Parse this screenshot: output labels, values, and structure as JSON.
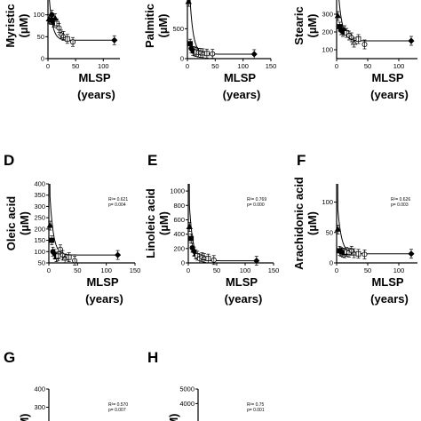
{
  "chart_data": [
    {
      "id": "A",
      "type": "scatter",
      "letter": "",
      "ylabel": [
        "Myristic",
        "(µM)"
      ],
      "xlabel": [
        "MLSP",
        "(years)"
      ],
      "xlim": [
        0,
        130
      ],
      "ylim": [
        0,
        150
      ],
      "xticks": [
        0,
        50,
        100
      ],
      "yticks": [
        0,
        50,
        100
      ],
      "points": [
        [
          2,
          90
        ],
        [
          5,
          88
        ],
        [
          7,
          100
        ],
        [
          10,
          82
        ],
        [
          13,
          92
        ],
        [
          16,
          80
        ],
        [
          20,
          70
        ],
        [
          24,
          55
        ],
        [
          28,
          52
        ],
        [
          35,
          45
        ],
        [
          45,
          38
        ],
        [
          120,
          42
        ]
      ],
      "stat": null
    },
    {
      "id": "B",
      "type": "scatter",
      "letter": "",
      "ylabel": [
        "Palmitic",
        "(µM)"
      ],
      "xlabel": [
        "MLSP",
        "(years)"
      ],
      "xlim": [
        0,
        150
      ],
      "ylim": [
        0,
        1100
      ],
      "xticks": [
        0,
        50,
        100,
        150
      ],
      "yticks": [
        0,
        500,
        1000
      ],
      "points": [
        [
          2,
          950
        ],
        [
          5,
          250
        ],
        [
          7,
          170
        ],
        [
          10,
          130
        ],
        [
          13,
          120
        ],
        [
          16,
          110
        ],
        [
          20,
          100
        ],
        [
          24,
          95
        ],
        [
          28,
          90
        ],
        [
          35,
          85
        ],
        [
          45,
          80
        ],
        [
          120,
          75
        ]
      ],
      "stat": null
    },
    {
      "id": "C",
      "type": "scatter",
      "letter": "",
      "ylabel": [
        "Stearic",
        "(µM)"
      ],
      "xlabel": [
        "MLSP",
        "(years)"
      ],
      "xlim": [
        0,
        130
      ],
      "ylim": [
        50,
        420
      ],
      "xticks": [
        0,
        50,
        100
      ],
      "yticks": [
        100,
        200,
        300,
        400
      ],
      "points": [
        [
          2,
          290
        ],
        [
          5,
          230
        ],
        [
          7,
          210
        ],
        [
          10,
          200
        ],
        [
          13,
          210
        ],
        [
          16,
          195
        ],
        [
          20,
          180
        ],
        [
          24,
          170
        ],
        [
          28,
          140
        ],
        [
          35,
          160
        ],
        [
          45,
          130
        ],
        [
          120,
          150
        ]
      ],
      "stat": null
    },
    {
      "id": "D",
      "type": "scatter",
      "letter": "D",
      "ylabel": [
        "Oleic acid",
        "(µM)"
      ],
      "xlabel": [
        "MLSP",
        "(years)"
      ],
      "xlim": [
        0,
        150
      ],
      "ylim": [
        50,
        400
      ],
      "xticks": [
        0,
        50,
        100,
        150
      ],
      "yticks": [
        50,
        100,
        150,
        200,
        250,
        300,
        350,
        400
      ],
      "points": [
        [
          2,
          215
        ],
        [
          5,
          150
        ],
        [
          7,
          100
        ],
        [
          10,
          90
        ],
        [
          13,
          75
        ],
        [
          16,
          80
        ],
        [
          20,
          110
        ],
        [
          24,
          85
        ],
        [
          28,
          70
        ],
        [
          35,
          75
        ],
        [
          45,
          60
        ],
        [
          120,
          85
        ]
      ],
      "stat": [
        "R²= 0.621",
        "p= 0.004"
      ]
    },
    {
      "id": "E",
      "type": "scatter",
      "letter": "E",
      "ylabel": [
        "Linoleic acid",
        "(µM)"
      ],
      "xlabel": [
        "MLSP",
        "(years)"
      ],
      "xlim": [
        0,
        150
      ],
      "ylim": [
        0,
        1100
      ],
      "xticks": [
        0,
        50,
        100,
        150
      ],
      "yticks": [
        0,
        200,
        400,
        600,
        800,
        1000
      ],
      "points": [
        [
          2,
          500
        ],
        [
          5,
          340
        ],
        [
          7,
          210
        ],
        [
          10,
          160
        ],
        [
          13,
          120
        ],
        [
          16,
          100
        ],
        [
          20,
          60
        ],
        [
          24,
          80
        ],
        [
          28,
          70
        ],
        [
          35,
          60
        ],
        [
          45,
          40
        ],
        [
          120,
          30
        ]
      ],
      "stat": [
        "R²= 0.769",
        "p= 0.000"
      ]
    },
    {
      "id": "F",
      "type": "scatter",
      "letter": "F",
      "ylabel": [
        "Arachidonic acid",
        "(µM)"
      ],
      "xlabel": [
        "MLSP",
        "(years)"
      ],
      "xlim": [
        0,
        130
      ],
      "ylim": [
        0,
        130
      ],
      "xticks": [
        0,
        50,
        100
      ],
      "yticks": [
        0,
        50,
        100
      ],
      "points": [
        [
          2,
          55
        ],
        [
          5,
          20
        ],
        [
          7,
          18
        ],
        [
          10,
          17
        ],
        [
          13,
          16
        ],
        [
          16,
          18
        ],
        [
          20,
          17
        ],
        [
          24,
          20
        ],
        [
          28,
          16
        ],
        [
          35,
          15
        ],
        [
          45,
          14
        ],
        [
          120,
          15
        ]
      ],
      "stat": [
        "R²= 0.626",
        "p= 0.003"
      ]
    },
    {
      "id": "G",
      "type": "scatter",
      "letter": "G",
      "ylabel": [
        "",
        "(µM)"
      ],
      "xlabel": [
        "",
        ""
      ],
      "xlim": [
        0,
        150
      ],
      "ylim": [
        0,
        400
      ],
      "xticks": [],
      "yticks": [
        300,
        400
      ],
      "points": [],
      "stat": [
        "R²= 0.570",
        "p= 0.007"
      ]
    },
    {
      "id": "H",
      "type": "scatter",
      "letter": "H",
      "ylabel": [
        "",
        "(µM)"
      ],
      "xlabel": [
        "",
        ""
      ],
      "xlim": [
        0,
        150
      ],
      "ylim": [
        0,
        5000
      ],
      "xticks": [],
      "yticks": [
        4000,
        5000
      ],
      "points": [],
      "stat": [
        "R²= 0.75",
        "p= 0.001"
      ]
    }
  ]
}
